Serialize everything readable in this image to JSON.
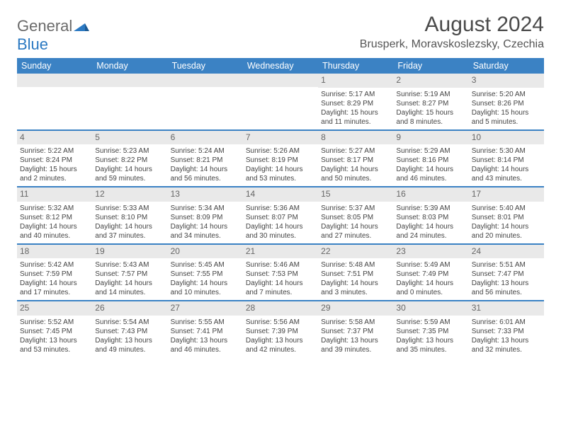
{
  "logo": {
    "part1": "General",
    "part2": "Blue"
  },
  "title": "August 2024",
  "subtitle": "Brusperk, Moravskoslezsky, Czechia",
  "weekdays": [
    "Sunday",
    "Monday",
    "Tuesday",
    "Wednesday",
    "Thursday",
    "Friday",
    "Saturday"
  ],
  "colors": {
    "header_bg": "#3b82c4",
    "header_text": "#ffffff",
    "daynum_bg": "#e9e9e9",
    "row_divider": "#3b82c4",
    "logo_gray": "#6a6a6a",
    "logo_blue": "#2b79c2",
    "body_text": "#444444"
  },
  "weeks": [
    [
      null,
      null,
      null,
      null,
      {
        "n": "1",
        "sunrise": "5:17 AM",
        "sunset": "8:29 PM",
        "daylight": "15 hours and 11 minutes."
      },
      {
        "n": "2",
        "sunrise": "5:19 AM",
        "sunset": "8:27 PM",
        "daylight": "15 hours and 8 minutes."
      },
      {
        "n": "3",
        "sunrise": "5:20 AM",
        "sunset": "8:26 PM",
        "daylight": "15 hours and 5 minutes."
      }
    ],
    [
      {
        "n": "4",
        "sunrise": "5:22 AM",
        "sunset": "8:24 PM",
        "daylight": "15 hours and 2 minutes."
      },
      {
        "n": "5",
        "sunrise": "5:23 AM",
        "sunset": "8:22 PM",
        "daylight": "14 hours and 59 minutes."
      },
      {
        "n": "6",
        "sunrise": "5:24 AM",
        "sunset": "8:21 PM",
        "daylight": "14 hours and 56 minutes."
      },
      {
        "n": "7",
        "sunrise": "5:26 AM",
        "sunset": "8:19 PM",
        "daylight": "14 hours and 53 minutes."
      },
      {
        "n": "8",
        "sunrise": "5:27 AM",
        "sunset": "8:17 PM",
        "daylight": "14 hours and 50 minutes."
      },
      {
        "n": "9",
        "sunrise": "5:29 AM",
        "sunset": "8:16 PM",
        "daylight": "14 hours and 46 minutes."
      },
      {
        "n": "10",
        "sunrise": "5:30 AM",
        "sunset": "8:14 PM",
        "daylight": "14 hours and 43 minutes."
      }
    ],
    [
      {
        "n": "11",
        "sunrise": "5:32 AM",
        "sunset": "8:12 PM",
        "daylight": "14 hours and 40 minutes."
      },
      {
        "n": "12",
        "sunrise": "5:33 AM",
        "sunset": "8:10 PM",
        "daylight": "14 hours and 37 minutes."
      },
      {
        "n": "13",
        "sunrise": "5:34 AM",
        "sunset": "8:09 PM",
        "daylight": "14 hours and 34 minutes."
      },
      {
        "n": "14",
        "sunrise": "5:36 AM",
        "sunset": "8:07 PM",
        "daylight": "14 hours and 30 minutes."
      },
      {
        "n": "15",
        "sunrise": "5:37 AM",
        "sunset": "8:05 PM",
        "daylight": "14 hours and 27 minutes."
      },
      {
        "n": "16",
        "sunrise": "5:39 AM",
        "sunset": "8:03 PM",
        "daylight": "14 hours and 24 minutes."
      },
      {
        "n": "17",
        "sunrise": "5:40 AM",
        "sunset": "8:01 PM",
        "daylight": "14 hours and 20 minutes."
      }
    ],
    [
      {
        "n": "18",
        "sunrise": "5:42 AM",
        "sunset": "7:59 PM",
        "daylight": "14 hours and 17 minutes."
      },
      {
        "n": "19",
        "sunrise": "5:43 AM",
        "sunset": "7:57 PM",
        "daylight": "14 hours and 14 minutes."
      },
      {
        "n": "20",
        "sunrise": "5:45 AM",
        "sunset": "7:55 PM",
        "daylight": "14 hours and 10 minutes."
      },
      {
        "n": "21",
        "sunrise": "5:46 AM",
        "sunset": "7:53 PM",
        "daylight": "14 hours and 7 minutes."
      },
      {
        "n": "22",
        "sunrise": "5:48 AM",
        "sunset": "7:51 PM",
        "daylight": "14 hours and 3 minutes."
      },
      {
        "n": "23",
        "sunrise": "5:49 AM",
        "sunset": "7:49 PM",
        "daylight": "14 hours and 0 minutes."
      },
      {
        "n": "24",
        "sunrise": "5:51 AM",
        "sunset": "7:47 PM",
        "daylight": "13 hours and 56 minutes."
      }
    ],
    [
      {
        "n": "25",
        "sunrise": "5:52 AM",
        "sunset": "7:45 PM",
        "daylight": "13 hours and 53 minutes."
      },
      {
        "n": "26",
        "sunrise": "5:54 AM",
        "sunset": "7:43 PM",
        "daylight": "13 hours and 49 minutes."
      },
      {
        "n": "27",
        "sunrise": "5:55 AM",
        "sunset": "7:41 PM",
        "daylight": "13 hours and 46 minutes."
      },
      {
        "n": "28",
        "sunrise": "5:56 AM",
        "sunset": "7:39 PM",
        "daylight": "13 hours and 42 minutes."
      },
      {
        "n": "29",
        "sunrise": "5:58 AM",
        "sunset": "7:37 PM",
        "daylight": "13 hours and 39 minutes."
      },
      {
        "n": "30",
        "sunrise": "5:59 AM",
        "sunset": "7:35 PM",
        "daylight": "13 hours and 35 minutes."
      },
      {
        "n": "31",
        "sunrise": "6:01 AM",
        "sunset": "7:33 PM",
        "daylight": "13 hours and 32 minutes."
      }
    ]
  ],
  "labels": {
    "sunrise": "Sunrise:",
    "sunset": "Sunset:",
    "daylight": "Daylight:"
  }
}
